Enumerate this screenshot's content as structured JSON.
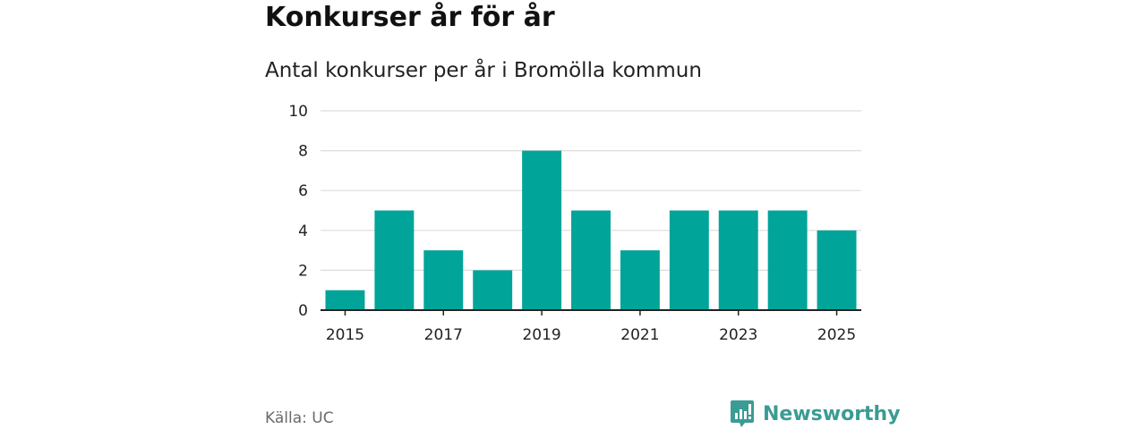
{
  "header": {
    "title": "Konkurser år för år",
    "subtitle": "Antal konkurser per år i Bromölla kommun"
  },
  "footer": {
    "source": "Källa: UC",
    "brand": "Newsworthy"
  },
  "colors": {
    "bar": "#00a499",
    "grid": "#dddddd",
    "axis": "#222222",
    "brand": "#3a9c94"
  },
  "chart_data": {
    "type": "bar",
    "title": "",
    "xlabel": "",
    "ylabel": "",
    "categories": [
      "2015",
      "2016",
      "2017",
      "2018",
      "2019",
      "2020",
      "2021",
      "2022",
      "2023",
      "2024",
      "2025"
    ],
    "values": [
      1,
      5,
      3,
      2,
      8,
      5,
      3,
      5,
      5,
      5,
      4
    ],
    "x_tick_labels": [
      "2015",
      "2017",
      "2019",
      "2021",
      "2023",
      "2025"
    ],
    "y_ticks": [
      0,
      2,
      4,
      6,
      8,
      10
    ],
    "ylim": [
      0,
      10
    ],
    "grid": true,
    "legend": "none"
  }
}
